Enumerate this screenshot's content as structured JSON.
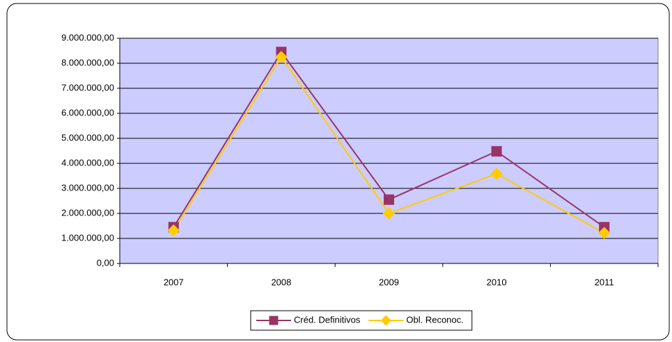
{
  "chart_data": {
    "type": "line",
    "categories": [
      "2007",
      "2008",
      "2009",
      "2010",
      "2011"
    ],
    "series": [
      {
        "name": "Créd. Definitivos",
        "color": "#993366",
        "marker": "square",
        "values": [
          1450000,
          8450000,
          2550000,
          4480000,
          1450000
        ]
      },
      {
        "name": "Obl. Reconoc.",
        "color": "#FFCC00",
        "marker": "diamond",
        "values": [
          1320000,
          8250000,
          2000000,
          3580000,
          1220000
        ]
      }
    ],
    "ylim": [
      0,
      9000000
    ],
    "yticks": [
      {
        "value": 0,
        "label": "0,00"
      },
      {
        "value": 1000000,
        "label": "1.000.000,00"
      },
      {
        "value": 2000000,
        "label": "2.000.000,00"
      },
      {
        "value": 3000000,
        "label": "3.000.000,00"
      },
      {
        "value": 4000000,
        "label": "4.000.000,00"
      },
      {
        "value": 5000000,
        "label": "5.000.000,00"
      },
      {
        "value": 6000000,
        "label": "6.000.000,00"
      },
      {
        "value": 7000000,
        "label": "7.000.000,00"
      },
      {
        "value": 8000000,
        "label": "8.000.000,00"
      },
      {
        "value": 9000000,
        "label": "9.000.000,00"
      }
    ],
    "grid": true,
    "plot_background": "#CCCCFF",
    "legend": "bottom"
  }
}
